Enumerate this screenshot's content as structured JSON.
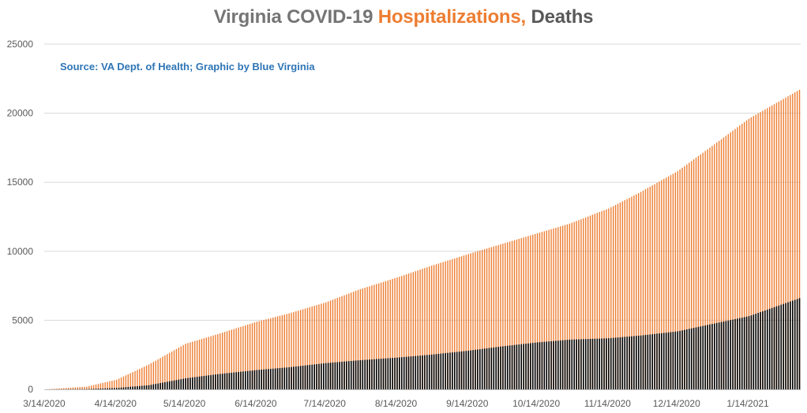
{
  "chart_data": {
    "type": "bar",
    "title": {
      "part1": "Virginia COVID-19 ",
      "part2": "Hospitalizations,",
      "part3": " Deaths"
    },
    "source_note": "Source: VA Dept. of Health; Graphic by Blue Virginia",
    "xlabel": "",
    "ylabel": "",
    "ylim": [
      0,
      25000
    ],
    "yticks": [
      "0",
      "5000",
      "10000",
      "15000",
      "20000",
      "25000"
    ],
    "grid": true,
    "legend": "none",
    "x_start": "3/14/2020",
    "x_end": "2/5/2021",
    "x_tick_labels": [
      "3/14/2020",
      "4/14/2020",
      "5/14/2020",
      "6/14/2020",
      "7/14/2020",
      "8/14/2020",
      "9/14/2020",
      "10/14/2020",
      "11/14/2020",
      "12/14/2020",
      "1/14/2021"
    ],
    "colors": {
      "hospitalizations": "#ed7d31",
      "deaths": "#000000",
      "title_gray": "#757575",
      "title_orange": "#ed7d31",
      "title_dark": "#595959",
      "source_text": "#2e75b6",
      "axis_text": "#595959",
      "gridline": "#d9d9d9"
    },
    "series": [
      {
        "name": "Hospitalizations",
        "color": "#ed7d31",
        "points": [
          [
            "3/14/2020",
            0
          ],
          [
            "4/1/2020",
            200
          ],
          [
            "4/14/2020",
            700
          ],
          [
            "4/28/2020",
            1800
          ],
          [
            "5/14/2020",
            3300
          ],
          [
            "5/28/2020",
            4000
          ],
          [
            "6/14/2020",
            4900
          ],
          [
            "6/28/2020",
            5500
          ],
          [
            "7/14/2020",
            6300
          ],
          [
            "7/28/2020",
            7200
          ],
          [
            "8/14/2020",
            8100
          ],
          [
            "8/28/2020",
            8900
          ],
          [
            "9/14/2020",
            9800
          ],
          [
            "9/28/2020",
            10500
          ],
          [
            "10/14/2020",
            11300
          ],
          [
            "10/28/2020",
            12000
          ],
          [
            "11/14/2020",
            13100
          ],
          [
            "11/28/2020",
            14300
          ],
          [
            "12/14/2020",
            15800
          ],
          [
            "12/28/2020",
            17500
          ],
          [
            "1/14/2021",
            19600
          ],
          [
            "2/5/2021",
            21700
          ]
        ]
      },
      {
        "name": "Deaths",
        "color": "#000000",
        "points": [
          [
            "3/14/2020",
            0
          ],
          [
            "4/1/2020",
            20
          ],
          [
            "4/14/2020",
            100
          ],
          [
            "4/28/2020",
            300
          ],
          [
            "5/14/2020",
            800
          ],
          [
            "5/28/2020",
            1100
          ],
          [
            "6/14/2020",
            1400
          ],
          [
            "6/28/2020",
            1600
          ],
          [
            "7/14/2020",
            1900
          ],
          [
            "7/28/2020",
            2100
          ],
          [
            "8/14/2020",
            2300
          ],
          [
            "8/28/2020",
            2500
          ],
          [
            "9/14/2020",
            2800
          ],
          [
            "9/28/2020",
            3100
          ],
          [
            "10/14/2020",
            3400
          ],
          [
            "10/28/2020",
            3600
          ],
          [
            "11/14/2020",
            3700
          ],
          [
            "11/28/2020",
            3900
          ],
          [
            "12/14/2020",
            4200
          ],
          [
            "12/28/2020",
            4700
          ],
          [
            "1/14/2021",
            5300
          ],
          [
            "2/5/2021",
            6600
          ]
        ]
      }
    ]
  }
}
